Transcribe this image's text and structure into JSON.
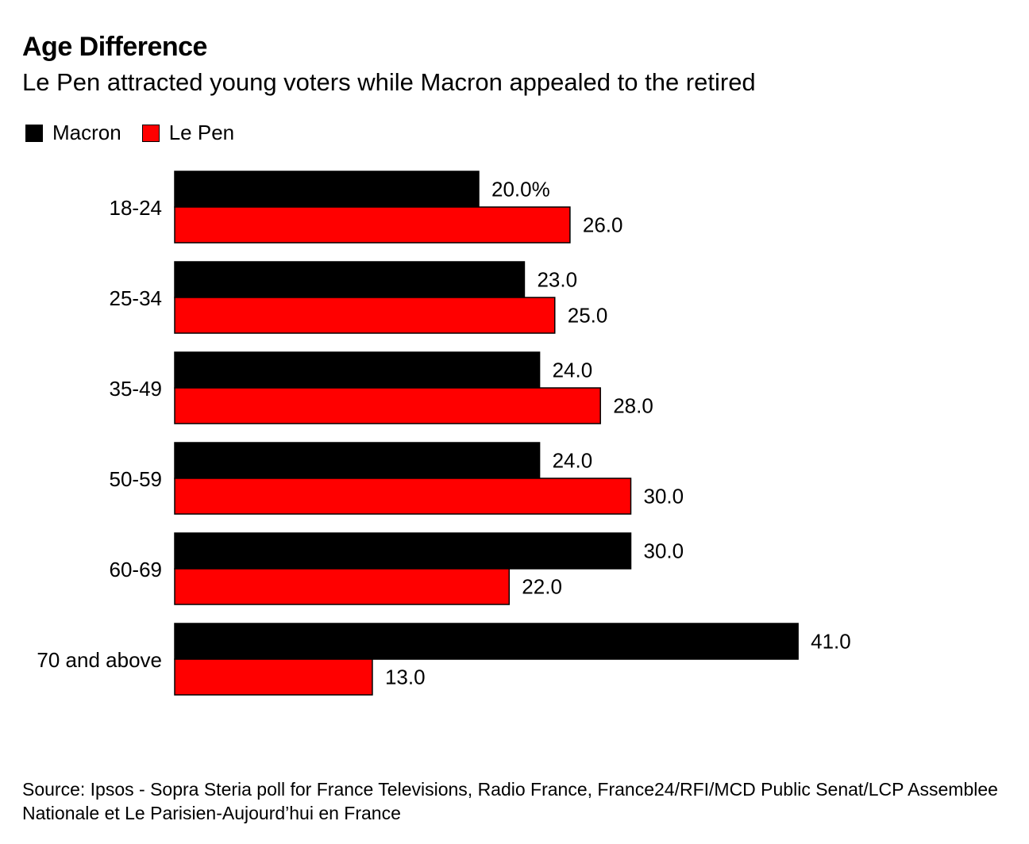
{
  "chart_data": {
    "type": "bar",
    "orientation": "horizontal",
    "title": "Age Difference",
    "subtitle": "Le Pen attracted young voters while Macron appealed to the retired",
    "categories": [
      "18-24",
      "25-34",
      "35-49",
      "50-59",
      "60-69",
      "70 and above"
    ],
    "series": [
      {
        "name": "Macron",
        "color": "#000000",
        "values": [
          20.0,
          23.0,
          24.0,
          24.0,
          30.0,
          41.0
        ],
        "labels": [
          "20.0%",
          "23.0",
          "24.0",
          "24.0",
          "30.0",
          "41.0"
        ]
      },
      {
        "name": "Le Pen",
        "color": "#ff0000",
        "values": [
          26.0,
          25.0,
          28.0,
          30.0,
          22.0,
          13.0
        ],
        "labels": [
          "26.0",
          "25.0",
          "28.0",
          "30.0",
          "22.0",
          "13.0"
        ]
      }
    ],
    "xlim": [
      0,
      41
    ],
    "xlabel": "",
    "ylabel": "",
    "grid": false,
    "legend_position": "top-left"
  },
  "source": "Source: Ipsos - Sopra Steria poll for France Televisions, Radio France, France24/RFI/MCD Public Senat/LCP Assemblee Nationale et Le Parisien-Aujourd’hui en France"
}
